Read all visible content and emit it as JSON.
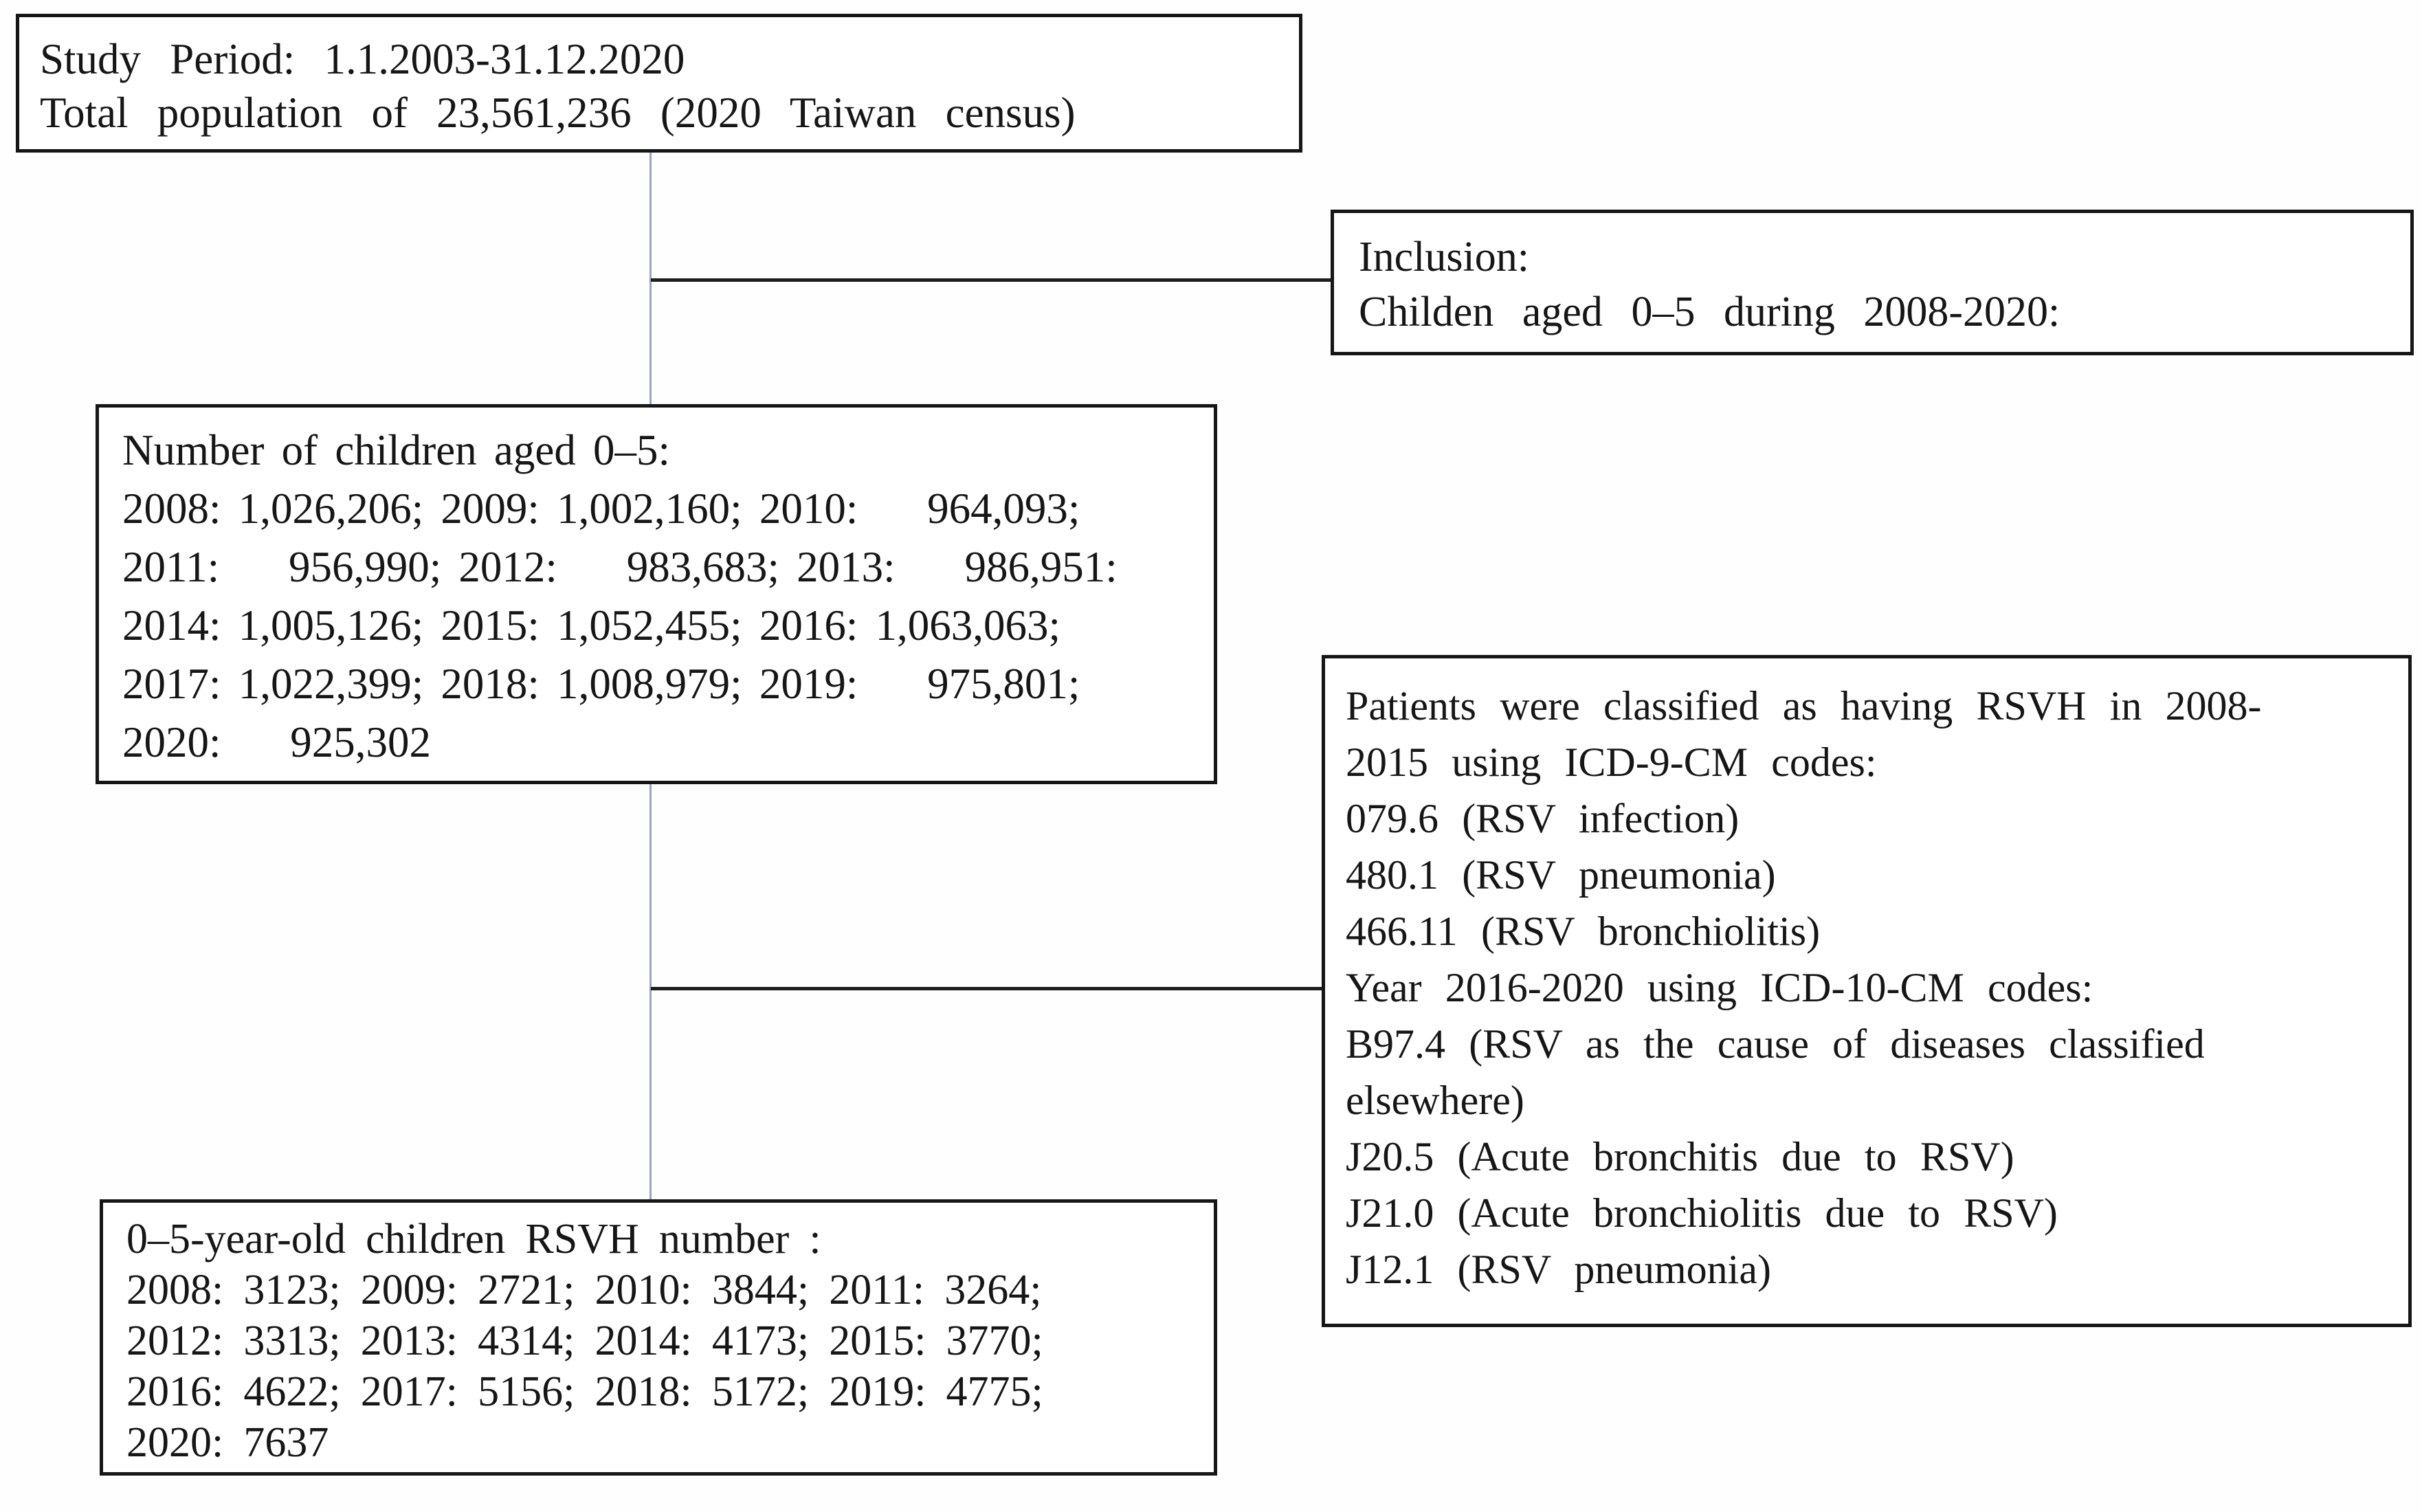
{
  "figure": {
    "type": "study-flow-diagram",
    "boxes": {
      "study_period": {
        "lines": [
          "Study Period: 1.1.2003-31.12.2020",
          "Total population of 23,561,236 (2020 Taiwan census)"
        ]
      },
      "inclusion": {
        "lines": [
          "Inclusion:",
          "Childen aged 0–5 during 2008-2020:"
        ]
      },
      "children_population": {
        "lines": [
          "Number of children aged 0–5:",
          "2008: 1,026,206; 2009: 1,002,160; 2010:    964,093;",
          "2011:    956,990; 2012:    983,683; 2013:    986,951:",
          "2014: 1,005,126; 2015: 1,052,455; 2016: 1,063,063;",
          "2017: 1,022,399; 2018: 1,008,979; 2019:    975,801;",
          "2020:    925,302"
        ]
      },
      "icd_codes": {
        "lines": [
          "Patients were classified as having RSVH in 2008-",
          "2015 using ICD-9-CM codes:",
          "079.6 (RSV infection)",
          "480.1 (RSV pneumonia)",
          "466.11 (RSV bronchiolitis)",
          "Year 2016-2020 using ICD-10-CM codes:",
          "B97.4 (RSV as the cause of diseases classified",
          "elsewhere)",
          "J20.5 (Acute bronchitis due to RSV)",
          "J21.0 (Acute bronchiolitis due to RSV)",
          "J12.1 (RSV pneumonia)"
        ]
      },
      "rsvh_numbers": {
        "lines": [
          "0–5-year-old children RSVH number :",
          "2008: 3123; 2009: 2721; 2010: 3844; 2011: 3264;",
          "2012: 3313; 2013: 4314; 2014: 4173; 2015: 3770;",
          "2016: 4622; 2017: 5156; 2018: 5172; 2019: 4775;",
          "2020: 7637"
        ]
      }
    },
    "datasets": {
      "total_population": "23,561,236",
      "population_aged_0_5_by_year": {
        "2008": "1,026,206",
        "2009": "1,002,160",
        "2010": "964,093",
        "2011": "956,990",
        "2012": "983,683",
        "2013": "986,951",
        "2014": "1,005,126",
        "2015": "1,052,455",
        "2016": "1,063,063",
        "2017": "1,022,399",
        "2018": "1,008,979",
        "2019": "975,801",
        "2020": "925,302"
      },
      "rsvh_count_by_year": {
        "2008": "3123",
        "2009": "2721",
        "2010": "3844",
        "2011": "3264",
        "2012": "3313",
        "2013": "4314",
        "2014": "4173",
        "2015": "3770",
        "2016": "4622",
        "2017": "5156",
        "2018": "5172",
        "2019": "4775",
        "2020": "7637"
      }
    },
    "colors": {
      "box_border": "#161616",
      "text": "#161616",
      "connector_vertical": "#8fa9c2",
      "connector_horizontal": "#1d1d1d",
      "background": "#fefefe"
    }
  }
}
